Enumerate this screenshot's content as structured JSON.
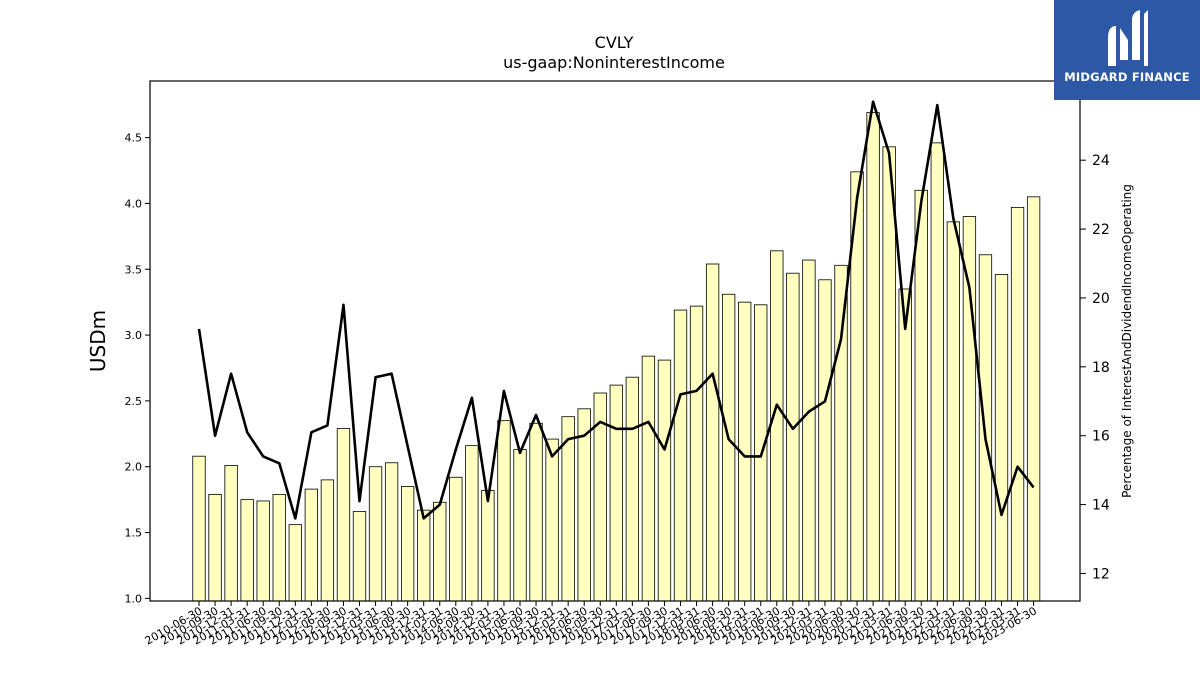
{
  "brand": {
    "name": "MIDGARD FINANCE",
    "logo_icon": "midgard-m-logo-icon",
    "bg_color": "#2d58a6"
  },
  "chart_data": {
    "type": "bar+line",
    "title": "CVLY",
    "subtitle": "us-gaap:NoninterestIncome",
    "ylabel": "USDm",
    "y2label": "Percentage of InterestAndDividendIncomeOperating",
    "ylim": [
      0.98,
      4.93
    ],
    "y2lim": [
      11.2,
      26.3
    ],
    "yticks": [
      1.0,
      1.5,
      2.0,
      2.5,
      3.0,
      3.5,
      4.0,
      4.5
    ],
    "y2ticks": [
      12,
      14,
      16,
      18,
      20,
      22,
      24
    ],
    "bar_color": "#ffffc0",
    "line_color": "#000000",
    "categories": [
      "2010-06-30",
      "2010-09-30",
      "2010-12-31",
      "2011-03-31",
      "2011-06-30",
      "2011-09-30",
      "2011-12-31",
      "2012-03-31",
      "2012-06-30",
      "2012-09-30",
      "2012-12-31",
      "2013-03-31",
      "2013-06-30",
      "2013-09-30",
      "2013-12-31",
      "2014-03-31",
      "2014-06-30",
      "2014-09-30",
      "2014-12-31",
      "2015-03-31",
      "2015-06-30",
      "2015-09-30",
      "2015-12-31",
      "2016-03-31",
      "2016-06-30",
      "2016-09-30",
      "2016-12-31",
      "2017-03-31",
      "2017-06-30",
      "2017-09-30",
      "2017-12-31",
      "2018-03-31",
      "2018-06-30",
      "2018-09-30",
      "2018-12-31",
      "2019-03-31",
      "2019-06-30",
      "2019-09-30",
      "2019-12-31",
      "2020-03-31",
      "2020-06-30",
      "2020-09-30",
      "2020-12-31",
      "2021-03-31",
      "2021-06-30",
      "2021-09-30",
      "2021-12-31",
      "2022-03-31",
      "2022-06-30",
      "2022-09-30",
      "2022-12-31",
      "2023-03-31",
      "2023-06-30"
    ],
    "series": [
      {
        "axis": "left",
        "values": [
          2.08,
          1.79,
          2.01,
          1.75,
          1.74,
          1.79,
          1.56,
          1.83,
          1.9,
          2.29,
          1.66,
          2.0,
          2.03,
          1.85,
          1.67,
          1.73,
          1.92,
          2.16,
          1.82,
          2.35,
          2.13,
          2.33,
          2.21,
          2.38,
          2.44,
          2.56,
          2.62,
          2.68,
          2.84,
          2.81,
          3.19,
          3.22,
          3.54,
          3.31,
          3.25,
          3.23,
          3.64,
          3.47,
          3.57,
          3.42,
          3.53,
          4.24,
          4.69,
          4.43,
          3.35,
          4.1,
          4.46,
          3.86,
          3.9,
          3.61,
          3.46,
          3.97,
          4.05
        ]
      },
      {
        "axis": "right",
        "values": [
          19.1,
          16.0,
          17.8,
          16.1,
          15.4,
          15.2,
          13.6,
          16.1,
          16.3,
          19.8,
          14.1,
          17.7,
          17.8,
          15.7,
          13.6,
          14.0,
          15.6,
          17.1,
          14.1,
          17.3,
          15.5,
          16.6,
          15.4,
          15.9,
          16.0,
          16.4,
          16.2,
          16.2,
          16.4,
          15.6,
          17.2,
          17.3,
          17.8,
          15.9,
          15.4,
          15.4,
          16.9,
          16.2,
          16.7,
          17.0,
          18.8,
          22.9,
          25.7,
          24.2,
          19.1,
          22.8,
          25.6,
          22.3,
          20.3,
          15.9,
          13.7,
          15.1,
          14.5
        ]
      }
    ]
  }
}
